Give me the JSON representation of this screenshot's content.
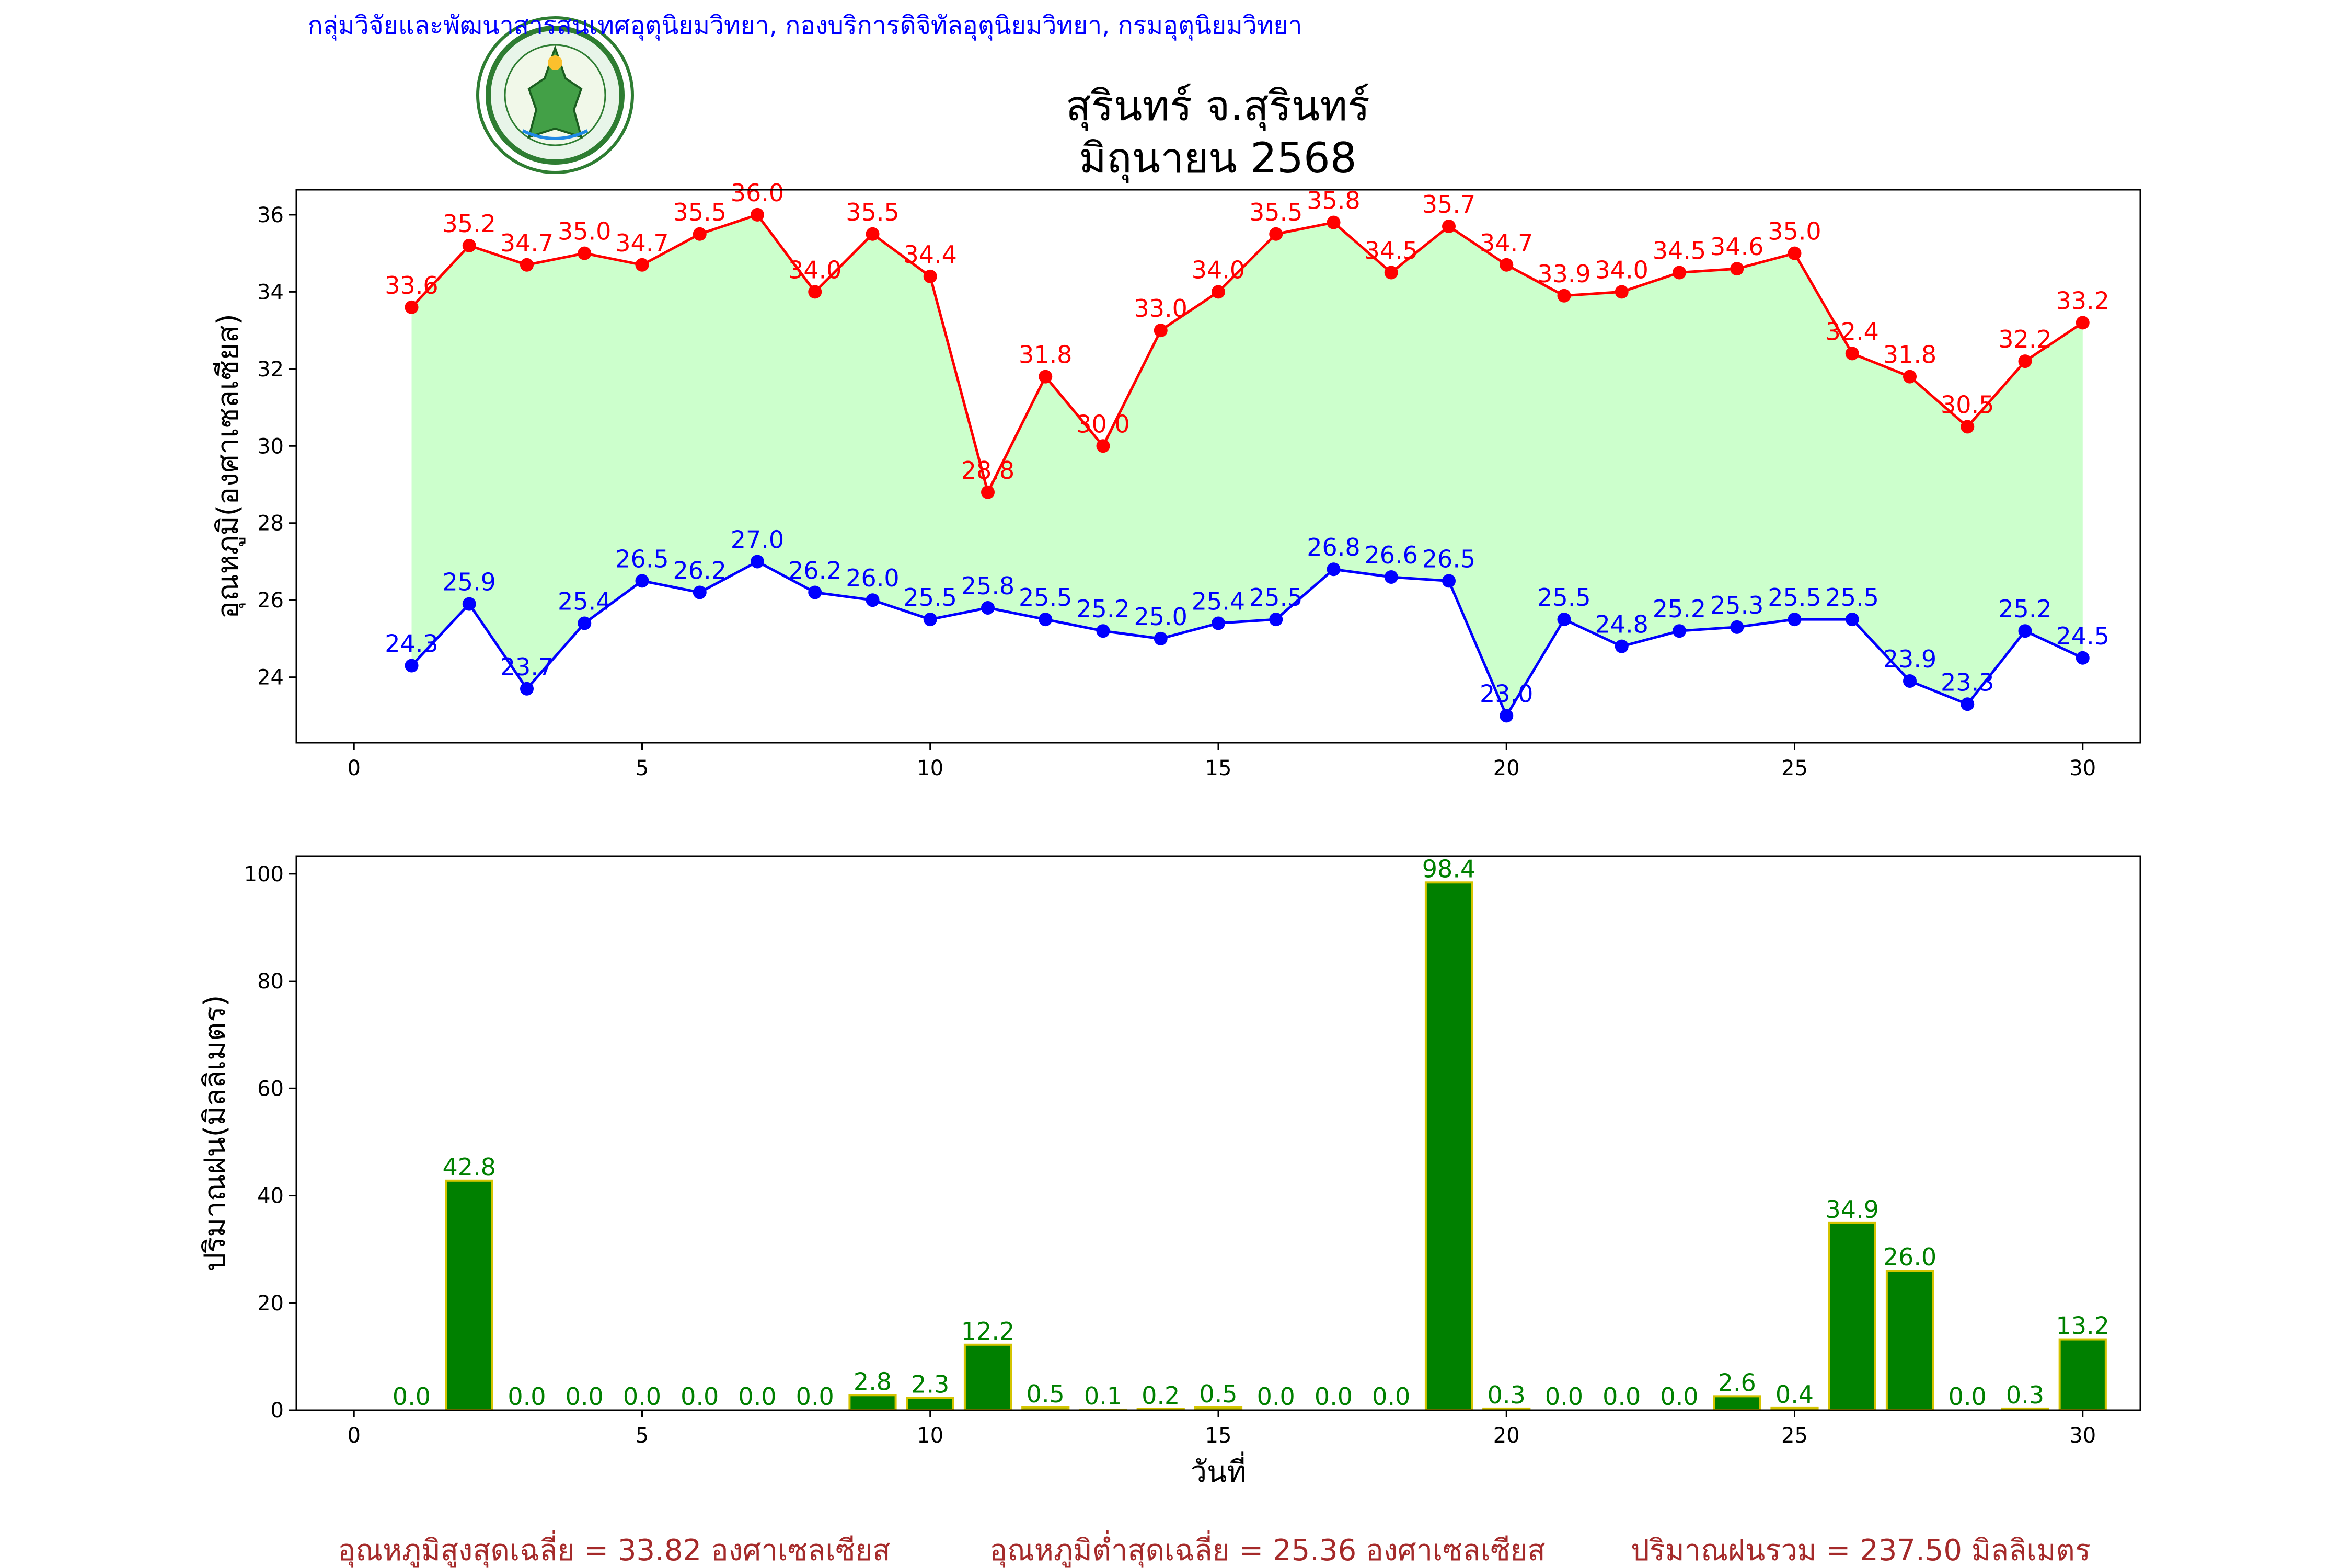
{
  "header": {
    "agency_line": "กลุ่มวิจัยและพัฒนาสารสนเทศอุตุนิยมวิทยา, กองบริการดิจิทัลอุตุนิยมวิทยา, กรมอุตุนิยมวิทยา",
    "logo_top_text": "กรมอุตุนิยมวิทยา",
    "logo_bottom_text": "METEOROLOGICAL DEPARTMENT",
    "title_line1": "สุรินทร์ จ.สุรินทร์",
    "title_line2": "มิถุนายน 2568"
  },
  "colors": {
    "agency": "#0000ff",
    "max_line": "#ff0000",
    "min_line": "#0000ff",
    "fill": "#ccffcc",
    "bar": "#008000",
    "bar_edge": "#d4c400",
    "bar_label": "#008000",
    "summary": "#a52a2a"
  },
  "chart_data": [
    {
      "type": "line",
      "ylabel": "อุณหภูมิ(องศาเซลเซียส)",
      "xlim": [
        -1,
        31
      ],
      "ylim": [
        22.3,
        36.65
      ],
      "xticks": [
        0,
        5,
        10,
        15,
        20,
        25,
        30
      ],
      "yticks": [
        24,
        26,
        28,
        30,
        32,
        34,
        36
      ],
      "x": [
        1,
        2,
        3,
        4,
        5,
        6,
        7,
        8,
        9,
        10,
        11,
        12,
        13,
        14,
        15,
        16,
        17,
        18,
        19,
        20,
        21,
        22,
        23,
        24,
        25,
        26,
        27,
        28,
        29,
        30
      ],
      "series": [
        {
          "key": "max",
          "values": [
            33.6,
            35.2,
            34.7,
            35.0,
            34.7,
            35.5,
            36.0,
            34.0,
            35.5,
            34.4,
            28.8,
            31.8,
            30.0,
            33.0,
            34.0,
            35.5,
            35.8,
            34.5,
            35.7,
            34.7,
            33.9,
            34.0,
            34.5,
            34.6,
            35.0,
            32.4,
            31.8,
            30.5,
            32.2,
            33.2
          ],
          "labels": [
            "33.6",
            "35.2",
            "34.7",
            "35.0",
            "34.7",
            "35.5",
            "36.0",
            "34.0",
            "35.5",
            "34.4",
            "28.8",
            "31.8",
            "30.0",
            "33.0",
            "34.0",
            "35.5",
            "35.8",
            "34.5",
            "35.7",
            "34.7",
            "33.9",
            "34.0",
            "34.5",
            "34.6",
            "35.0",
            "32.4",
            "31.8",
            "30.5",
            "32.2",
            "33.2"
          ]
        },
        {
          "key": "min",
          "values": [
            24.3,
            25.9,
            23.7,
            25.4,
            26.5,
            26.2,
            27.0,
            26.2,
            26.0,
            25.5,
            25.8,
            25.5,
            25.2,
            25.0,
            25.4,
            25.5,
            26.8,
            26.6,
            26.5,
            23.0,
            25.5,
            24.8,
            25.2,
            25.3,
            25.5,
            25.5,
            23.9,
            23.3,
            25.2,
            24.5
          ],
          "labels": [
            "24.3",
            "25.9",
            "23.7",
            "25.4",
            "26.5",
            "26.2",
            "27.0",
            "26.2",
            "26.0",
            "25.5",
            "25.8",
            "25.5",
            "25.2",
            "25.0",
            "25.4",
            "25.5",
            "26.8",
            "26.6",
            "26.5",
            "23.0",
            "25.5",
            "24.8",
            "25.2",
            "25.3",
            "25.5",
            "25.5",
            "23.9",
            "23.3",
            "25.2",
            "24.5"
          ]
        }
      ]
    },
    {
      "type": "bar",
      "ylabel": "ปริมาณฝน(มิลลิเมตร)",
      "xlabel": "วันที่",
      "xlim": [
        -1,
        31
      ],
      "ylim": [
        0,
        103.3
      ],
      "xticks": [
        0,
        5,
        10,
        15,
        20,
        25,
        30
      ],
      "yticks": [
        0,
        20,
        40,
        60,
        80,
        100
      ],
      "x": [
        1,
        2,
        3,
        4,
        5,
        6,
        7,
        8,
        9,
        10,
        11,
        12,
        13,
        14,
        15,
        16,
        17,
        18,
        19,
        20,
        21,
        22,
        23,
        24,
        25,
        26,
        27,
        28,
        29,
        30
      ],
      "values": [
        0.0,
        42.8,
        0.0,
        0.0,
        0.0,
        0.0,
        0.0,
        0.0,
        2.8,
        2.3,
        12.2,
        0.5,
        0.1,
        0.2,
        0.5,
        0.0,
        0.0,
        0.0,
        98.4,
        0.3,
        0.0,
        0.0,
        0.0,
        2.6,
        0.4,
        34.9,
        26.0,
        0.0,
        0.3,
        13.2
      ],
      "labels": [
        "0.0",
        "42.8",
        "0.0",
        "0.0",
        "0.0",
        "0.0",
        "0.0",
        "0.0",
        "2.8",
        "2.3",
        "12.2",
        "0.5",
        "0.1",
        "0.2",
        "0.5",
        "0.0",
        "0.0",
        "0.0",
        "98.4",
        "0.3",
        "0.0",
        "0.0",
        "0.0",
        "2.6",
        "0.4",
        "34.9",
        "26.0",
        "0.0",
        "0.3",
        "13.2"
      ]
    }
  ],
  "summary": {
    "avg_max": "อุณหภูมิสูงสุดเฉลี่ย = 33.82 องศาเซลเซียส",
    "avg_min": "อุณหภูมิต่ำสุดเฉลี่ย = 25.36 องศาเซลเซียส",
    "total_rain": "ปริมาณฝนรวม = 237.50 มิลลิเมตร"
  }
}
